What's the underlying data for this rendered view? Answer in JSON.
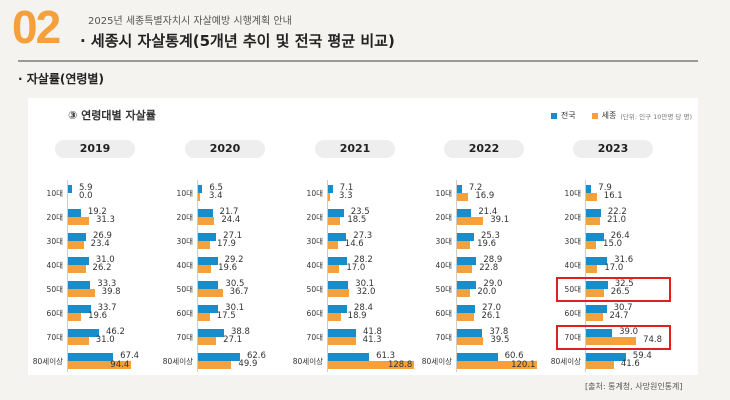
{
  "header": {
    "number": "02",
    "subtitle": "2025년 세종특별자치시 자살예방 시행계획 안내",
    "title": "· 세종시 자살통계(5개년 추이 및 전국 평균 비교)"
  },
  "section": "· 자살률(연령별)",
  "source": "[출처: 통계청, 사망원인통계]",
  "colors": {
    "national": "#1a8cc8",
    "sejong": "#f5a03a"
  },
  "chart_data": {
    "type": "bar",
    "title": "③ 연령대별 자살률",
    "unit": "(단위: 인구 10만명 당 명)",
    "legend": [
      "전국",
      "세종"
    ],
    "legend_position": "top-right",
    "categories": [
      "10대",
      "20대",
      "30대",
      "40대",
      "50대",
      "60대",
      "70대",
      "80세이상"
    ],
    "panels": [
      {
        "year": "2019",
        "series": [
          {
            "name": "전국",
            "values": [
              5.9,
              19.2,
              26.9,
              31.0,
              33.3,
              33.7,
              46.2,
              67.4
            ]
          },
          {
            "name": "세종",
            "values": [
              0.0,
              31.3,
              23.4,
              26.2,
              39.8,
              19.6,
              31.0,
              94.4
            ]
          }
        ]
      },
      {
        "year": "2020",
        "series": [
          {
            "name": "전국",
            "values": [
              6.5,
              21.7,
              27.1,
              29.2,
              30.5,
              30.1,
              38.8,
              62.6
            ]
          },
          {
            "name": "세종",
            "values": [
              3.4,
              24.4,
              17.9,
              19.6,
              36.7,
              17.5,
              27.1,
              49.9
            ]
          }
        ]
      },
      {
        "year": "2021",
        "series": [
          {
            "name": "전국",
            "values": [
              7.1,
              23.5,
              27.3,
              28.2,
              30.1,
              28.4,
              41.8,
              61.3
            ]
          },
          {
            "name": "세종",
            "values": [
              3.3,
              18.5,
              14.6,
              17.0,
              32.0,
              18.9,
              41.3,
              128.8
            ]
          }
        ]
      },
      {
        "year": "2022",
        "series": [
          {
            "name": "전국",
            "values": [
              7.2,
              21.4,
              25.3,
              28.9,
              29.0,
              27.0,
              37.8,
              60.6
            ]
          },
          {
            "name": "세종",
            "values": [
              16.9,
              39.1,
              19.6,
              22.8,
              20.0,
              26.1,
              39.5,
              120.1
            ]
          }
        ]
      },
      {
        "year": "2023",
        "series": [
          {
            "name": "전국",
            "values": [
              7.9,
              22.2,
              26.4,
              31.6,
              32.5,
              30.7,
              39.0,
              59.4
            ]
          },
          {
            "name": "세종",
            "values": [
              16.1,
              21.0,
              15.0,
              17.0,
              26.5,
              24.7,
              74.8,
              41.6
            ]
          }
        ],
        "highlighted_categories": [
          "50대",
          "70대"
        ]
      }
    ]
  }
}
